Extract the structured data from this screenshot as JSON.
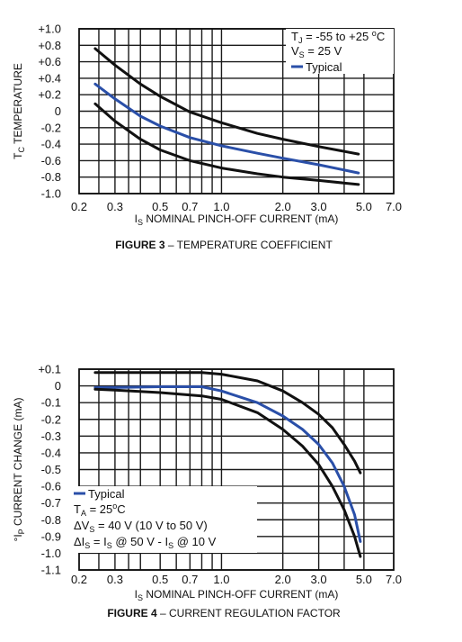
{
  "chart_data": [
    {
      "type": "line",
      "title": "TEMPERATURE COEFFICIENT",
      "figure_label": "FIGURE 3",
      "caption_dash": "–",
      "xlabel_prefix": "I",
      "xlabel_sub": "S",
      "xlabel_rest": " NOMINAL PINCH-OFF CURRENT (mA)",
      "ylabel_prefix": "T",
      "ylabel_sub": "C",
      "ylabel_rest": " TEMPERATURE",
      "x_scale": "log",
      "xlim": [
        0.2,
        7.0
      ],
      "ylim": [
        -1.0,
        1.0
      ],
      "grid": true,
      "x_ticks": [
        "0.2",
        "0.3",
        "0.5",
        "0.7",
        "1.0",
        "2.0",
        "3.0",
        "5.0",
        "7.0"
      ],
      "y_ticks": [
        "+1.0",
        "+0.8",
        "+0.6",
        "+0.4",
        "+0.2",
        "0",
        "-0.2",
        "-0.4",
        "-0.6",
        "-0.8",
        "-1.0"
      ],
      "annotations": [
        {
          "prefix": "T",
          "sub": "J",
          "rest": " = -55 to +25 ",
          "sup": "o",
          "tail": "C"
        },
        {
          "prefix": "V",
          "sub": "S",
          "rest": " = 25 V",
          "sup": "",
          "tail": ""
        }
      ],
      "legend": {
        "label": "Typical",
        "position": "top-right"
      },
      "series": [
        {
          "name": "Typical",
          "color": "#2a4fa8",
          "x": [
            0.24,
            0.3,
            0.4,
            0.5,
            0.7,
            1.0,
            1.5,
            2.0,
            3.0,
            4.7
          ],
          "y": [
            0.33,
            0.15,
            -0.06,
            -0.18,
            -0.32,
            -0.42,
            -0.51,
            -0.57,
            -0.65,
            -0.75
          ]
        },
        {
          "color": "#111111",
          "x": [
            0.24,
            0.3,
            0.4,
            0.5,
            0.7,
            1.0,
            1.5,
            2.0,
            3.0,
            4.7
          ],
          "y": [
            0.76,
            0.56,
            0.33,
            0.18,
            -0.01,
            -0.14,
            -0.27,
            -0.34,
            -0.43,
            -0.52
          ]
        },
        {
          "color": "#111111",
          "x": [
            0.24,
            0.3,
            0.4,
            0.5,
            0.7,
            1.0,
            1.5,
            2.0,
            3.0,
            4.7
          ],
          "y": [
            0.09,
            -0.12,
            -0.34,
            -0.47,
            -0.6,
            -0.69,
            -0.76,
            -0.8,
            -0.84,
            -0.89
          ]
        }
      ]
    },
    {
      "type": "line",
      "title": "CURRENT REGULATION FACTOR",
      "figure_label": "FIGURE 4",
      "caption_dash": "–",
      "xlabel_prefix": "I",
      "xlabel_sub": "S",
      "xlabel_rest": " NOMINAL PINCH-OFF CURRENT (mA)",
      "ylabel_prefix": "°I",
      "ylabel_sub": "P",
      "ylabel_rest": " CURRENT CHANGE (mA)",
      "x_scale": "log",
      "xlim": [
        0.2,
        7.0
      ],
      "ylim": [
        -1.1,
        0.1
      ],
      "grid": true,
      "x_ticks": [
        "0.2",
        "0.3",
        "0.5",
        "0.7",
        "1.0",
        "2.0",
        "3.0",
        "5.0",
        "7.0"
      ],
      "y_ticks": [
        "+0.1",
        "0",
        "-0.1",
        "-0.2",
        "-0.3",
        "-0.4",
        "-0.5",
        "-0.6",
        "-0.7",
        "-0.8",
        "-0.9",
        "-1.0",
        "-1.1"
      ],
      "legend": {
        "label": "Typical",
        "position": "bottom-left"
      },
      "annotations": [
        {
          "prefix": "T",
          "sub": "A",
          "rest": " = 25",
          "sup": "o",
          "tail": "C"
        },
        {
          "prefix": "ΔV",
          "sub": "S",
          "rest": " = 40 V (10 V to 50 V)",
          "sup": "",
          "tail": ""
        },
        {
          "prefix": "ΔI",
          "sub": "S",
          "rest": " = I",
          "sub2": "S",
          "rest2": " @ 50 V - I",
          "sub3": "S",
          "rest3": " @ 10 V"
        }
      ],
      "series": [
        {
          "name": "Typical",
          "color": "#2a4fa8",
          "x": [
            0.24,
            0.3,
            0.5,
            0.8,
            1.0,
            1.5,
            2.0,
            2.5,
            3.0,
            3.5,
            4.0,
            4.5,
            4.8
          ],
          "y": [
            -0.01,
            -0.01,
            -0.005,
            -0.005,
            -0.03,
            -0.1,
            -0.18,
            -0.26,
            -0.35,
            -0.46,
            -0.6,
            -0.77,
            -0.93
          ]
        },
        {
          "color": "#111111",
          "x": [
            0.24,
            0.3,
            0.5,
            0.8,
            1.0,
            1.5,
            2.0,
            2.5,
            3.0,
            3.5,
            4.0,
            4.5,
            4.8
          ],
          "y": [
            0.08,
            0.08,
            0.08,
            0.08,
            0.07,
            0.03,
            -0.03,
            -0.1,
            -0.17,
            -0.25,
            -0.35,
            -0.45,
            -0.52
          ]
        },
        {
          "color": "#111111",
          "x": [
            0.24,
            0.3,
            0.5,
            0.8,
            1.0,
            1.5,
            2.0,
            2.5,
            3.0,
            3.5,
            4.0,
            4.5,
            4.8
          ],
          "y": [
            -0.02,
            -0.025,
            -0.04,
            -0.06,
            -0.08,
            -0.16,
            -0.26,
            -0.36,
            -0.47,
            -0.6,
            -0.74,
            -0.9,
            -1.02
          ]
        }
      ]
    }
  ]
}
